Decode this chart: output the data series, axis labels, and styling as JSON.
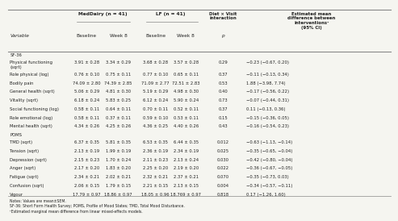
{
  "col_headers_row1": [
    "",
    "MedDairy (n = 41)",
    "",
    "LF (n = 41)",
    "",
    "Diet × Visit\ninteraction",
    "Estimated mean\ndifference between\ninterventions¹\n(95% CI)"
  ],
  "col_headers_row2": [
    "Variable",
    "Baseline",
    "Week 8",
    "Baseline",
    "Week 8",
    "p",
    ""
  ],
  "section_sf36": "SF-36",
  "section_poms": "POMS",
  "rows": [
    [
      "Physical functioning\n(sqrt)",
      "3.91 ± 0.28",
      "3.34 ± 0.29",
      "3.68 ± 0.28",
      "3.57 ± 0.28",
      "0.29",
      "−0.23 (−0.67, 0.20)"
    ],
    [
      "Role physical (log)",
      "0.76 ± 0.10",
      "0.75 ± 0.11",
      "0.77 ± 0.10",
      "0.65 ± 0.11",
      "0.37",
      "−0.11 (−0.13, 0.34)"
    ],
    [
      "Bodily pain",
      "74.09 ± 2.80",
      "74.39 ± 2.85",
      "71.09 ± 2.77",
      "72.51 ± 2.83",
      "0.53",
      "1.88 (−3.98, 7.74)"
    ],
    [
      "General health (sqrt)",
      "5.06 ± 0.29",
      "4.81 ± 0.30",
      "5.19 ± 0.29",
      "4.98 ± 0.30",
      "0.40",
      "−0.17 (−0.56, 0.22)"
    ],
    [
      "Vitality (sqrt)",
      "6.18 ± 0.24",
      "5.83 ± 0.25",
      "6.12 ± 0.24",
      "5.90 ± 0.24",
      "0.73",
      "−0.07 (−0.44, 0.31)"
    ],
    [
      "Social functioning (log)",
      "0.58 ± 0.11",
      "0.64 ± 0.11",
      "0.70 ± 0.11",
      "0.52 ± 0.11",
      "0.37",
      "0.11 (−0.13, 0.36)"
    ],
    [
      "Role emotional (log)",
      "0.58 ± 0.11",
      "0.37 ± 0.11",
      "0.59 ± 0.10",
      "0.53 ± 0.11",
      "0.15",
      "−0.15 (−0.36, 0.05)"
    ],
    [
      "Mental health (sqrt)",
      "4.34 ± 0.26",
      "4.25 ± 0.26",
      "4.36 ± 0.25",
      "4.40 ± 0.26",
      "0.43",
      "−0.16 (−0.54, 0.23)"
    ],
    [
      "TMD (sqrt)",
      "6.37 ± 0.35",
      "5.81 ± 0.35",
      "6.53 ± 0.35",
      "6.44 ± 0.35",
      "0.012",
      "−0.63 (−1.13, −0.14)"
    ],
    [
      "Tension (sqrt)",
      "2.13 ± 0.19",
      "1.99 ± 0.19",
      "2.36 ± 0.19",
      "2.34 ± 0.19",
      "0.025",
      "−0.35 (−0.65, −0.04)"
    ],
    [
      "Depression (sqrt)",
      "2.15 ± 0.23",
      "1.70 ± 0.24",
      "2.11 ± 0.23",
      "2.13 ± 0.24",
      "0.030",
      "−0.42 (−0.80, −0.04)"
    ],
    [
      "Anger (sqrt)",
      "2.17 ± 0.20",
      "1.83 ± 0.20",
      "2.25 ± 0.20",
      "2.19 ± 0.20",
      "0.022",
      "−0.36 (−0.67, −0.05)"
    ],
    [
      "Fatigue (sqrt)",
      "2.34 ± 0.21",
      "2.02 ± 0.21",
      "2.32 ± 0.21",
      "2.37 ± 0.21",
      "0.070",
      "−0.35 (−0.73, 0.03)"
    ],
    [
      "Confusion (sqrt)",
      "2.06 ± 0.15",
      "1.79 ± 0.15",
      "2.21 ± 0.15",
      "2.13 ± 0.15",
      "0.004",
      "−0.34 (−0.57, −0.11)"
    ],
    [
      "Vigour",
      "17.79 ± 0.97",
      "18.86 ± 0.97",
      "18.05 ± 0.96",
      "18.769 ± 0.97",
      "0.818",
      "0.17 (−1.26, 1.60)"
    ]
  ],
  "notes": [
    "Notes: Values are mean±SEM.",
    "SF-36: Short Form Health Survey; POMS, Profile of Mood States; TMD, Total Mood Disturbance.",
    "¹Estimated marginal mean difference from linear mixed-effects models."
  ],
  "bg_color": "#f5f5f0",
  "text_color": "#222222",
  "header_line_color": "#888888"
}
